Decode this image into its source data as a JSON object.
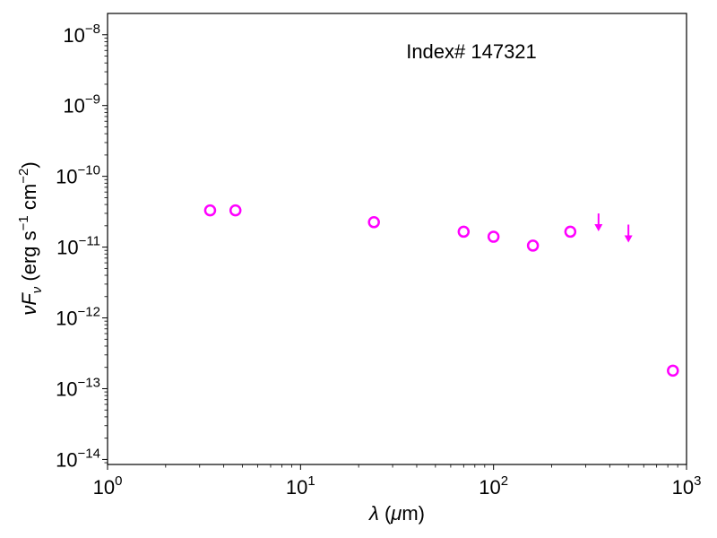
{
  "chart_data": {
    "type": "scatter",
    "title": "",
    "annotation": "Index# 147321",
    "xlabel": "λ (μm)",
    "ylabel": "νF_ν (erg s^-1 cm^-2)",
    "xscale": "log",
    "yscale": "log",
    "xlim": [
      1,
      1000
    ],
    "ylim": [
      8.5e-15,
      2e-08
    ],
    "x_ticks": [
      {
        "base": "10",
        "exp": "0",
        "value": 1
      },
      {
        "base": "10",
        "exp": "1",
        "value": 10
      },
      {
        "base": "10",
        "exp": "2",
        "value": 100
      },
      {
        "base": "10",
        "exp": "3",
        "value": 1000
      }
    ],
    "y_ticks": [
      {
        "base": "10",
        "exp": "−14",
        "value": 1e-14
      },
      {
        "base": "10",
        "exp": "−13",
        "value": 1e-13
      },
      {
        "base": "10",
        "exp": "−12",
        "value": 1e-12
      },
      {
        "base": "10",
        "exp": "−11",
        "value": 1e-11
      },
      {
        "base": "10",
        "exp": "−10",
        "value": 1e-10
      },
      {
        "base": "10",
        "exp": "−9",
        "value": 1e-09
      },
      {
        "base": "10",
        "exp": "−8",
        "value": 1e-08
      }
    ],
    "color": "#ff00ff",
    "series": [
      {
        "marker": "open-circle",
        "points": [
          {
            "x": 3.4,
            "y": 3.3e-11
          },
          {
            "x": 4.6,
            "y": 3.3e-11
          },
          {
            "x": 24,
            "y": 2.25e-11
          },
          {
            "x": 70,
            "y": 1.65e-11
          },
          {
            "x": 100,
            "y": 1.4e-11
          },
          {
            "x": 160,
            "y": 1.05e-11
          },
          {
            "x": 250,
            "y": 1.65e-11
          },
          {
            "x": 850,
            "y": 1.8e-13
          }
        ]
      },
      {
        "marker": "upper-limit-arrow",
        "points": [
          {
            "x": 350,
            "y": 2.3e-11
          },
          {
            "x": 500,
            "y": 1.6e-11
          }
        ]
      }
    ],
    "grid": false
  }
}
